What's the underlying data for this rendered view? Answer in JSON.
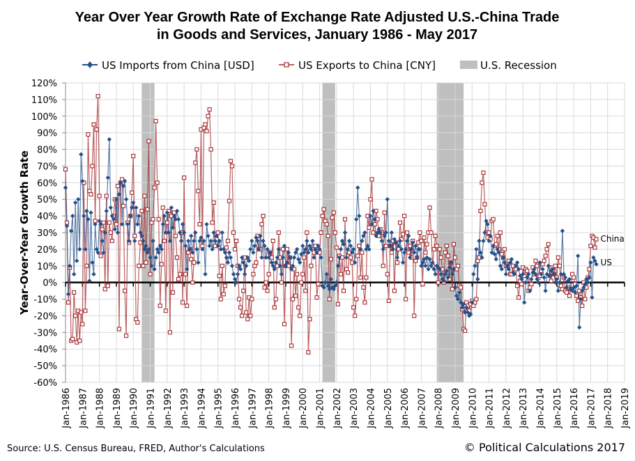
{
  "chart_data": {
    "type": "line",
    "title_line1": "Year Over Year Growth Rate of Exchange Rate Adjusted U.S.-China Trade",
    "title_line2": "in Goods and Services, January 1986 - May 2017",
    "ylabel": "Year-Over-Year Growth Rate",
    "xlabel": "",
    "ylim": [
      -60,
      120
    ],
    "y_unit": "%",
    "y_ticks": [
      "-60%",
      "-50%",
      "-40%",
      "-30%",
      "-20%",
      "-10%",
      "0%",
      "10%",
      "20%",
      "30%",
      "40%",
      "50%",
      "60%",
      "70%",
      "80%",
      "90%",
      "100%",
      "110%",
      "120%"
    ],
    "x_range": [
      "Jan-1986",
      "Jan-2019"
    ],
    "x_ticks": [
      "Jan-1986",
      "Jan-1987",
      "Jan-1988",
      "Jan-1989",
      "Jan-1990",
      "Jan-1991",
      "Jan-1992",
      "Jan-1993",
      "Jan-1994",
      "Jan-1995",
      "Jan-1996",
      "Jan-1997",
      "Jan-1998",
      "Jan-1999",
      "Jan-2000",
      "Jan-2001",
      "Jan-2002",
      "Jan-2003",
      "Jan-2004",
      "Jan-2005",
      "Jan-2006",
      "Jan-2007",
      "Jan-2008",
      "Jan-2009",
      "Jan-2010",
      "Jan-2011",
      "Jan-2012",
      "Jan-2013",
      "Jan-2014",
      "Jan-2015",
      "Jan-2016",
      "Jan-2017",
      "Jan-2018",
      "Jan-2019"
    ],
    "grid": true,
    "legend_placement": "top",
    "start_month": "Jan-1986",
    "frequency": "monthly",
    "series": [
      {
        "name": "US Imports from China [USD]",
        "color": "#24508a",
        "marker": "diamond",
        "end_label": "US",
        "values": [
          57,
          34,
          -7,
          10,
          31,
          40,
          5,
          48,
          13,
          50,
          20,
          77,
          61,
          40,
          20,
          43,
          38,
          1,
          42,
          12,
          5,
          35,
          20,
          18,
          37,
          35,
          25,
          18,
          30,
          43,
          63,
          86,
          45,
          40,
          38,
          32,
          50,
          30,
          53,
          60,
          35,
          58,
          61,
          50,
          35,
          25,
          40,
          45,
          48,
          25,
          45,
          35,
          40,
          30,
          28,
          25,
          20,
          22,
          18,
          20,
          15,
          10,
          25,
          8,
          15,
          20,
          18,
          22,
          20,
          35,
          40,
          30,
          42,
          30,
          25,
          45,
          33,
          40,
          38,
          43,
          38,
          30,
          25,
          35,
          30,
          22,
          8,
          25,
          20,
          28,
          18,
          25,
          30,
          20,
          12,
          25,
          27,
          20,
          25,
          5,
          35,
          28,
          22,
          25,
          20,
          30,
          25,
          28,
          22,
          25,
          20,
          30,
          20,
          18,
          15,
          12,
          18,
          15,
          10,
          5,
          2,
          0,
          5,
          10,
          8,
          15,
          12,
          5,
          10,
          15,
          13,
          20,
          25,
          18,
          22,
          27,
          25,
          20,
          28,
          15,
          25,
          22,
          15,
          20,
          15,
          18,
          12,
          10,
          8,
          12,
          15,
          20,
          10,
          5,
          15,
          22,
          10,
          12,
          18,
          15,
          8,
          10,
          15,
          18,
          20,
          14,
          12,
          17,
          22,
          18,
          20,
          25,
          18,
          22,
          20,
          25,
          15,
          20,
          18,
          22,
          20,
          15,
          -2,
          -3,
          0,
          5,
          -2,
          -4,
          2,
          -3,
          -4,
          -2,
          0,
          10,
          15,
          20,
          25,
          23,
          30,
          15,
          20,
          25,
          22,
          18,
          20,
          12,
          38,
          57,
          40,
          20,
          25,
          28,
          30,
          20,
          22,
          20,
          40,
          35,
          43,
          38,
          28,
          30,
          32,
          30,
          25,
          20,
          28,
          30,
          50,
          25,
          22,
          30,
          20,
          26,
          24,
          15,
          22,
          25,
          20,
          12,
          18,
          20,
          25,
          28,
          15,
          20,
          24,
          18,
          22,
          15,
          20,
          20,
          10,
          12,
          14,
          10,
          15,
          8,
          14,
          10,
          12,
          8,
          5,
          10,
          9,
          8,
          5,
          2,
          1,
          5,
          7,
          3,
          9,
          12,
          5,
          8,
          -3,
          -8,
          -10,
          -6,
          -12,
          -15,
          -13,
          -18,
          -15,
          -18,
          -20,
          -19,
          -12,
          5,
          10,
          20,
          2,
          25,
          18,
          15,
          25,
          30,
          37,
          35,
          25,
          28,
          18,
          22,
          17,
          14,
          20,
          18,
          10,
          8,
          15,
          12,
          5,
          10,
          8,
          12,
          14,
          6,
          5,
          10,
          12,
          8,
          4,
          2,
          5,
          -12,
          0,
          3,
          5,
          -5,
          2,
          6,
          8,
          5,
          2,
          0,
          12,
          5,
          8,
          3,
          -5,
          5,
          10,
          4,
          7,
          8,
          5,
          0,
          2,
          -5,
          0,
          5,
          31,
          5,
          3,
          -3,
          1,
          2,
          -4,
          -5,
          -3,
          -6,
          -2,
          16,
          -27,
          -10,
          -5,
          -3,
          -1,
          2,
          0,
          3,
          12,
          -9,
          15,
          13,
          11
        ]
      },
      {
        "name": "US Exports to China [CNY]",
        "color": "#a3282b",
        "marker": "open-square",
        "end_label": "China",
        "values": [
          68,
          36,
          -12,
          9,
          -35,
          -34,
          -6,
          -20,
          -36,
          -17,
          -35,
          -18,
          -25,
          60,
          -17,
          10,
          89,
          55,
          53,
          70,
          95,
          37,
          92,
          112,
          52,
          16,
          32,
          36,
          -4,
          52,
          -2,
          36,
          30,
          25,
          40,
          50,
          35,
          58,
          -28,
          60,
          62,
          46,
          -5,
          -32,
          36,
          24,
          40,
          54,
          76,
          28,
          -22,
          -24,
          10,
          24,
          43,
          10,
          52,
          12,
          44,
          85,
          5,
          36,
          38,
          57,
          97,
          60,
          38,
          -14,
          11,
          45,
          25,
          -17,
          36,
          43,
          -30,
          40,
          -6,
          42,
          28,
          15,
          2,
          5,
          30,
          -12,
          63,
          5,
          -14,
          18,
          20,
          14,
          0,
          12,
          72,
          80,
          55,
          35,
          92,
          22,
          93,
          95,
          91,
          100,
          104,
          80,
          36,
          48,
          22,
          26,
          30,
          4,
          -10,
          10,
          -7,
          -2,
          21,
          25,
          49,
          73,
          70,
          30,
          20,
          25,
          10,
          -10,
          -15,
          -20,
          -5,
          15,
          -18,
          -22,
          -9,
          -20,
          -10,
          5,
          10,
          12,
          28,
          20,
          20,
          35,
          40,
          -3,
          0,
          -5,
          5,
          18,
          15,
          25,
          -15,
          -10,
          10,
          30,
          15,
          0,
          20,
          -25,
          10,
          20,
          10,
          15,
          -38,
          -10,
          8,
          -8,
          5,
          -15,
          -20,
          0,
          5,
          15,
          -5,
          30,
          -42,
          -22,
          10,
          20,
          18,
          22,
          -9,
          -1,
          18,
          30,
          40,
          44,
          37,
          35,
          28,
          -10,
          14,
          39,
          42,
          30,
          21,
          -13,
          16,
          5,
          15,
          -5,
          38,
          8,
          6,
          18,
          15,
          12,
          -15,
          -20,
          -10,
          16,
          22,
          3,
          18,
          -3,
          -12,
          3,
          40,
          33,
          50,
          62,
          30,
          35,
          43,
          38,
          28,
          32,
          30,
          10,
          42,
          22,
          5,
          -11,
          22,
          18,
          25,
          -5,
          24,
          12,
          20,
          36,
          26,
          29,
          40,
          -10,
          30,
          18,
          22,
          15,
          25,
          -20,
          13,
          15,
          24,
          30,
          25,
          -1,
          27,
          18,
          23,
          30,
          45,
          30,
          10,
          20,
          28,
          22,
          0,
          20,
          15,
          8,
          0,
          18,
          22,
          16,
          2,
          12,
          -4,
          23,
          15,
          8,
          10,
          -2,
          -3,
          -16,
          -28,
          -29,
          -12,
          -14,
          -17,
          -13,
          -11,
          -14,
          -12,
          -10,
          13,
          15,
          43,
          60,
          66,
          47,
          30,
          27,
          30,
          26,
          37,
          38,
          22,
          23,
          28,
          20,
          30,
          17,
          15,
          20,
          10,
          10,
          13,
          5,
          5,
          10,
          7,
          8,
          -2,
          -9,
          1,
          -1,
          9,
          4,
          8,
          7,
          -5,
          -3,
          -1,
          9,
          5,
          13,
          10,
          3,
          4,
          7,
          11,
          13,
          16,
          20,
          23,
          4,
          1,
          9,
          5,
          10,
          3,
          15,
          10,
          -2,
          -4,
          3,
          -5,
          -6,
          -3,
          -8,
          -4,
          5,
          3,
          -1,
          -8,
          -11,
          -5,
          -9,
          -14,
          0,
          -10,
          -3,
          3,
          8,
          22,
          28,
          27,
          21,
          26
        ]
      }
    ],
    "recession": {
      "name": "U.S. Recession",
      "color": "#bfbfbf",
      "periods": [
        [
          "Jul-1990",
          "Mar-1991"
        ],
        [
          "Mar-2001",
          "Nov-2001"
        ],
        [
          "Dec-2007",
          "Dec-2008"
        ],
        [
          "Jan-2009",
          "Jun-2009"
        ]
      ]
    },
    "source": "Source: U.S. Census Bureau, FRED, Author's Calculations",
    "copyright": "© Political Calculations 2017"
  }
}
